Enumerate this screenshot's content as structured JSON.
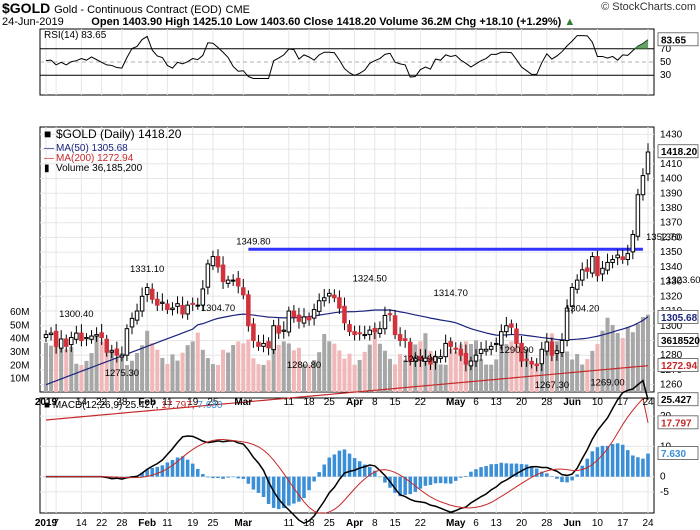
{
  "header": {
    "symbol": "$GOLD",
    "description": "Gold - Continuous Contract (EOD)",
    "exchange": "CME",
    "copyright": "© StockCharts.com",
    "date": "24-Jun-2019",
    "ohlc_line": "Open 1403.90  High 1425.10  Low 1403.60  Close 1418.20  Volume 36.2M  Chg +18.10 (+1.29%)",
    "chg_icon": "up-arrow-icon"
  },
  "colors": {
    "up": "#000000",
    "down_fill": "#d2323c",
    "ma50": "#1a237e",
    "ma200": "#c62828",
    "resistance": "#3333ff",
    "volume_up": "#a7a7a7",
    "volume_down": "#f0b8b8",
    "macd_hist": "#3a8fd6",
    "rsi_fill": "#3c8c3c"
  },
  "rsi": {
    "label": "RSI(14) 83.65",
    "value_tag": "83.65",
    "levels": [
      70,
      50,
      30
    ]
  },
  "price": {
    "legend": {
      "symbol": "$GOLD (Daily) 1418.20",
      "ma50": "MA(50) 1305.68",
      "ma200": "MA(200) 1272.94",
      "volume": "Volume 36,185,200"
    },
    "tags": {
      "close": "1418.20",
      "ma50": "1305.68",
      "ma200": "1272.94",
      "volume": "36185200"
    },
    "annotations": [
      {
        "text": "1300.40",
        "x": 6,
        "y": 1300.4
      },
      {
        "text": "1275.30",
        "x": 15,
        "y": 1275.3
      },
      {
        "text": "1331.10",
        "x": 20,
        "y": 1331.1
      },
      {
        "text": "1304.70",
        "x": 34,
        "y": 1304.7
      },
      {
        "text": "1349.80",
        "x": 41,
        "y": 1349.8
      },
      {
        "text": "1280.80",
        "x": 51,
        "y": 1280.8
      },
      {
        "text": "1324.50",
        "x": 64,
        "y": 1324.5
      },
      {
        "text": "1284.90",
        "x": 74,
        "y": 1284.9
      },
      {
        "text": "1314.70",
        "x": 80,
        "y": 1314.7
      },
      {
        "text": "1290.90",
        "x": 93,
        "y": 1290.9
      },
      {
        "text": "1267.30",
        "x": 100,
        "y": 1267.3
      },
      {
        "text": "1304.20",
        "x": 106,
        "y": 1304.2
      },
      {
        "text": "1269.00",
        "x": 111,
        "y": 1269.0
      },
      {
        "text": "1352.70",
        "x": 122,
        "y": 1352.7
      },
      {
        "text": "1323.60",
        "x": 126,
        "y": 1323.6
      }
    ],
    "resistance": 1352
  },
  "macd": {
    "label": "MACD(12,26,9)",
    "macd_value": "25.427",
    "signal_value": "17.797",
    "hist_value": "7.630"
  },
  "x_axis": [
    "2019",
    "7",
    "14",
    "22",
    "28",
    "Feb",
    "11",
    "19",
    "25",
    "Mar",
    "11",
    "18",
    "25",
    "Apr",
    "8",
    "15",
    "22",
    "May",
    "6",
    "13",
    "20",
    "28",
    "Jun",
    "10",
    "17",
    "24"
  ],
  "chart_data": {
    "type": "candlestick",
    "title": "$GOLD (Daily) 1418.20",
    "dates": [
      "2019-01-02",
      "2019-01-03",
      "2019-01-04",
      "2019-01-07",
      "2019-01-08",
      "2019-01-09",
      "2019-01-10",
      "2019-01-11",
      "2019-01-14",
      "2019-01-15",
      "2019-01-16",
      "2019-01-17",
      "2019-01-18",
      "2019-01-22",
      "2019-01-23",
      "2019-01-24",
      "2019-01-25",
      "2019-01-28",
      "2019-01-29",
      "2019-01-30",
      "2019-01-31",
      "2019-02-01",
      "2019-02-04",
      "2019-02-05",
      "2019-02-06",
      "2019-02-07",
      "2019-02-08",
      "2019-02-11",
      "2019-02-12",
      "2019-02-13",
      "2019-02-14",
      "2019-02-15",
      "2019-02-19",
      "2019-02-20",
      "2019-02-21",
      "2019-02-22",
      "2019-02-25",
      "2019-02-26",
      "2019-02-27",
      "2019-02-28",
      "2019-03-01",
      "2019-03-04",
      "2019-03-05",
      "2019-03-06",
      "2019-03-07",
      "2019-03-08",
      "2019-03-11",
      "2019-03-12",
      "2019-03-13",
      "2019-03-14",
      "2019-03-15",
      "2019-03-18",
      "2019-03-19",
      "2019-03-20",
      "2019-03-21",
      "2019-03-22",
      "2019-03-25",
      "2019-03-26",
      "2019-03-27",
      "2019-03-28",
      "2019-03-29",
      "2019-04-01",
      "2019-04-02",
      "2019-04-03",
      "2019-04-04",
      "2019-04-05",
      "2019-04-08",
      "2019-04-09",
      "2019-04-10",
      "2019-04-11",
      "2019-04-12",
      "2019-04-15",
      "2019-04-16",
      "2019-04-17",
      "2019-04-18",
      "2019-04-22",
      "2019-04-23",
      "2019-04-24",
      "2019-04-25",
      "2019-04-26",
      "2019-04-29",
      "2019-04-30",
      "2019-05-01",
      "2019-05-02",
      "2019-05-03",
      "2019-05-06",
      "2019-05-07",
      "2019-05-08",
      "2019-05-09",
      "2019-05-10",
      "2019-05-13",
      "2019-05-14",
      "2019-05-15",
      "2019-05-16",
      "2019-05-17",
      "2019-05-20",
      "2019-05-21",
      "2019-05-22",
      "2019-05-23",
      "2019-05-24",
      "2019-05-28",
      "2019-05-29",
      "2019-05-30",
      "2019-05-31",
      "2019-06-03",
      "2019-06-04",
      "2019-06-05",
      "2019-06-06",
      "2019-06-07",
      "2019-06-10",
      "2019-06-11",
      "2019-06-12",
      "2019-06-13",
      "2019-06-14",
      "2019-06-17",
      "2019-06-18",
      "2019-06-19",
      "2019-06-20",
      "2019-06-21",
      "2019-06-24"
    ],
    "close": [
      1294,
      1295,
      1286,
      1291,
      1286,
      1292,
      1295,
      1290,
      1292,
      1293,
      1294,
      1292,
      1282,
      1283,
      1280,
      1280,
      1298,
      1305,
      1310,
      1320,
      1326,
      1318,
      1314,
      1316,
      1311,
      1312,
      1315,
      1308,
      1314,
      1315,
      1314,
      1325,
      1342,
      1347,
      1340,
      1330,
      1331,
      1331,
      1327,
      1321,
      1300,
      1290,
      1286,
      1288,
      1285,
      1300,
      1295,
      1297,
      1310,
      1306,
      1303,
      1306,
      1304,
      1311,
      1317,
      1319,
      1322,
      1319,
      1312,
      1302,
      1296,
      1294,
      1295,
      1294,
      1297,
      1296,
      1298,
      1307,
      1308,
      1294,
      1290,
      1290,
      1276,
      1278,
      1277,
      1278,
      1274,
      1279,
      1279,
      1288,
      1286,
      1284,
      1280,
      1274,
      1276,
      1280,
      1284,
      1284,
      1286,
      1288,
      1296,
      1300,
      1299,
      1288,
      1276,
      1277,
      1274,
      1273,
      1284,
      1289,
      1280,
      1283,
      1290,
      1312,
      1326,
      1331,
      1338,
      1337,
      1347,
      1334,
      1339,
      1343,
      1345,
      1348,
      1345,
      1349,
      1362,
      1389,
      1402,
      1418
    ],
    "ma50_last": 1305.68,
    "ma200_last": 1272.94,
    "resistance_level": 1352,
    "annotations": [
      1300.4,
      1275.3,
      1331.1,
      1304.7,
      1349.8,
      1280.8,
      1324.5,
      1284.9,
      1314.7,
      1290.9,
      1267.3,
      1304.2,
      1269.0,
      1352.7,
      1323.6
    ],
    "ylim": [
      1255,
      1435
    ],
    "y_ticks": [
      1260,
      1270,
      1280,
      1290,
      1300,
      1310,
      1320,
      1330,
      1340,
      1350,
      1360,
      1370,
      1380,
      1390,
      1400,
      1410,
      1420,
      1430
    ],
    "volume_ticks": [
      "10M",
      "20M",
      "30M",
      "40M",
      "50M",
      "60M"
    ],
    "rsi_ticks": [
      70,
      50,
      30
    ],
    "macd_ticks": [
      20,
      10,
      0,
      -5
    ]
  }
}
